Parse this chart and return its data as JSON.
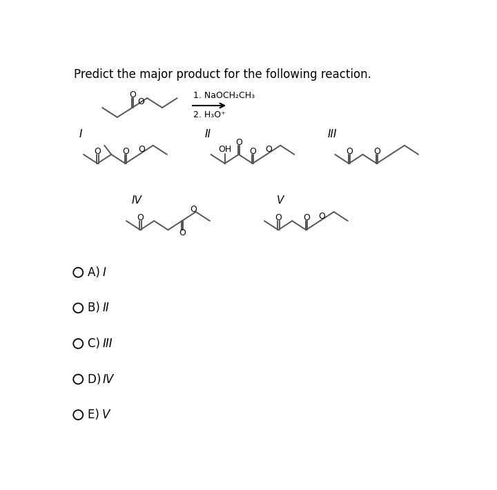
{
  "title": "Predict the major product for the following reaction.",
  "title_fontsize": 12,
  "background_color": "#ffffff",
  "line_color": "#555555",
  "text_color": "#000000",
  "reagent_line1": "1. NaOCH₂CH₃",
  "reagent_line2": "2. H₃O⁺",
  "choices": [
    {
      "label": "A) ",
      "roman": "I"
    },
    {
      "label": "B) ",
      "roman": "II"
    },
    {
      "label": "C) ",
      "roman": "III"
    },
    {
      "label": "D) ",
      "roman": "IV"
    },
    {
      "label": "E) ",
      "roman": "V"
    }
  ]
}
